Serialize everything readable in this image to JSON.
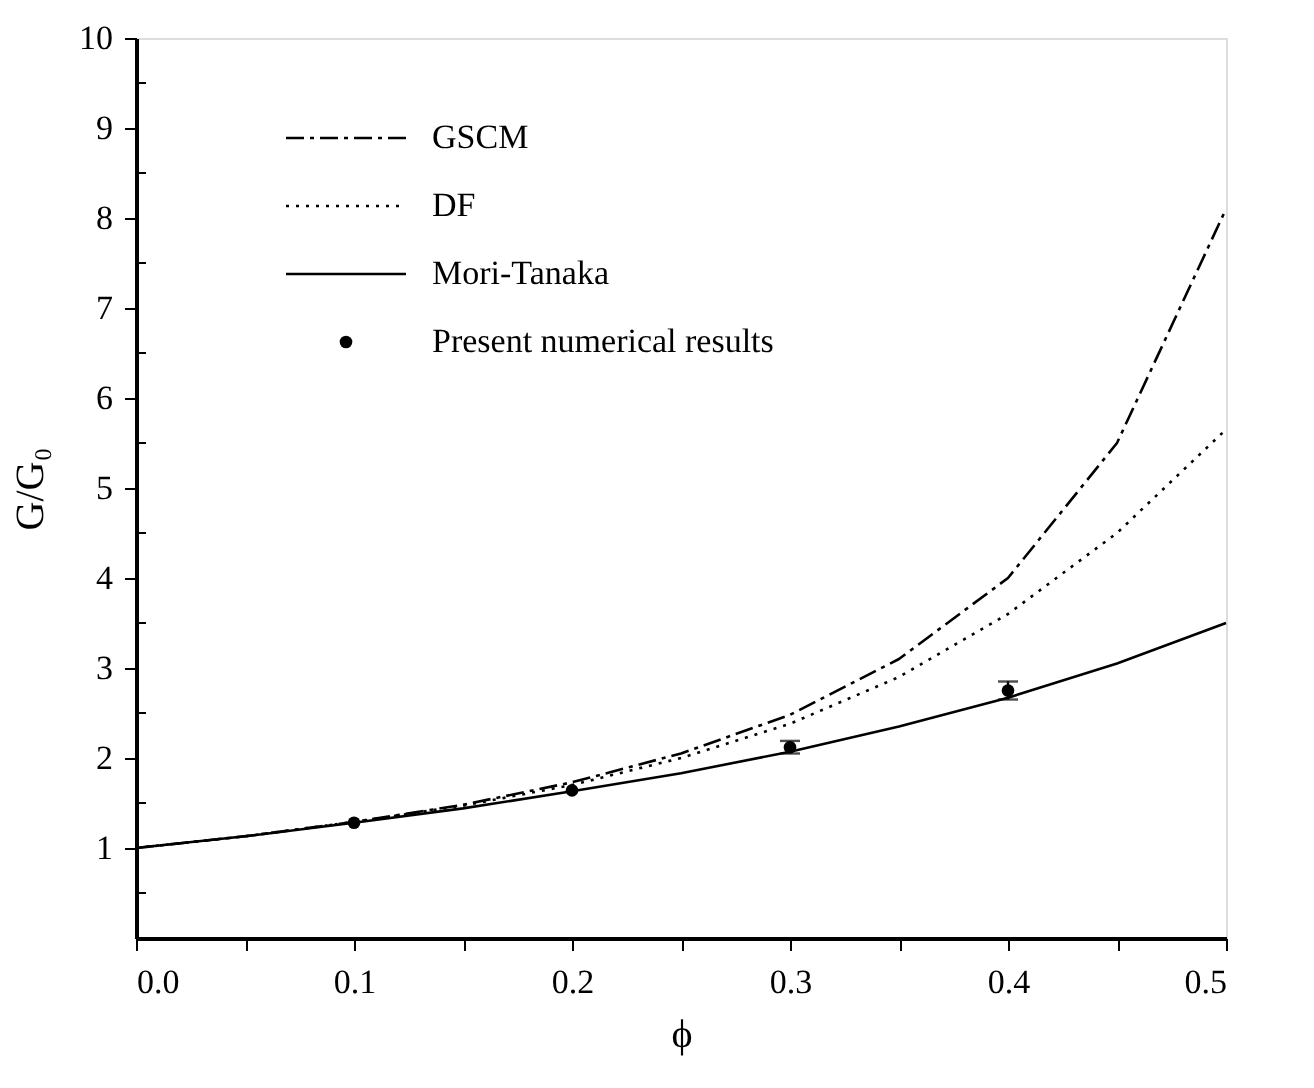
{
  "chart_data": {
    "type": "line",
    "xlabel": "ϕ",
    "ylabel": "G/G₀",
    "xlim": [
      0,
      0.5
    ],
    "ylim": [
      0,
      10
    ],
    "xticks": [
      {
        "value": 0,
        "label": "0.0"
      },
      {
        "value": 0.05,
        "label": null
      },
      0.1,
      {
        "value": 0.15,
        "label": null
      },
      0.2,
      {
        "value": 0.25,
        "label": null
      },
      0.3,
      {
        "value": 0.35,
        "label": null
      },
      0.4,
      {
        "value": 0.45,
        "label": null
      },
      0.5
    ],
    "yticks": [
      {
        "value": 0.5,
        "label": null
      },
      1,
      {
        "value": 1.5,
        "label": null
      },
      2,
      {
        "value": 2.5,
        "label": null
      },
      3,
      {
        "value": 3.5,
        "label": null
      },
      4,
      {
        "value": 4.5,
        "label": null
      },
      5,
      {
        "value": 5.5,
        "label": null
      },
      6,
      {
        "value": 6.5,
        "label": null
      },
      7,
      {
        "value": 7.5,
        "label": null
      },
      8,
      {
        "value": 8.5,
        "label": null
      },
      9,
      {
        "value": 9.5,
        "label": null
      },
      10
    ],
    "grid": false,
    "legend": "top left",
    "series": [
      {
        "name": "GSCM",
        "color": "#000000",
        "line_style": "dashed",
        "marker": "none",
        "x": [
          0,
          0.05,
          0.1,
          0.15,
          0.2,
          0.25,
          0.3,
          0.35,
          0.4,
          0.45,
          0.5
        ],
        "values": [
          1,
          1.13,
          1.29,
          1.48,
          1.73,
          2.05,
          2.48,
          3.1,
          4.0,
          5.5,
          8.1
        ]
      },
      {
        "name": "DF",
        "color": "#000000",
        "line_style": "dotted",
        "marker": "none",
        "x": [
          0,
          0.05,
          0.1,
          0.15,
          0.2,
          0.25,
          0.3,
          0.35,
          0.4,
          0.45,
          0.5
        ],
        "values": [
          1,
          1.13,
          1.29,
          1.47,
          1.7,
          2.0,
          2.38,
          2.9,
          3.6,
          4.5,
          5.65
        ]
      },
      {
        "name": "Mori-Tanaka",
        "color": "#000000",
        "line_style": "solid",
        "marker": "none",
        "x": [
          0,
          0.05,
          0.1,
          0.15,
          0.2,
          0.25,
          0.3,
          0.35,
          0.4,
          0.45,
          0.5
        ],
        "values": [
          1,
          1.13,
          1.28,
          1.44,
          1.63,
          1.83,
          2.07,
          2.35,
          2.67,
          3.05,
          3.5
        ]
      },
      {
        "name": "Present numerical results",
        "type": "scatter",
        "color": "#000000",
        "marker": "circle",
        "x": [
          0.1,
          0.2,
          0.3,
          0.4
        ],
        "values": [
          1.28,
          1.64,
          2.12,
          2.75
        ],
        "errors": [
          null,
          null,
          0.07,
          0.1
        ]
      }
    ]
  }
}
